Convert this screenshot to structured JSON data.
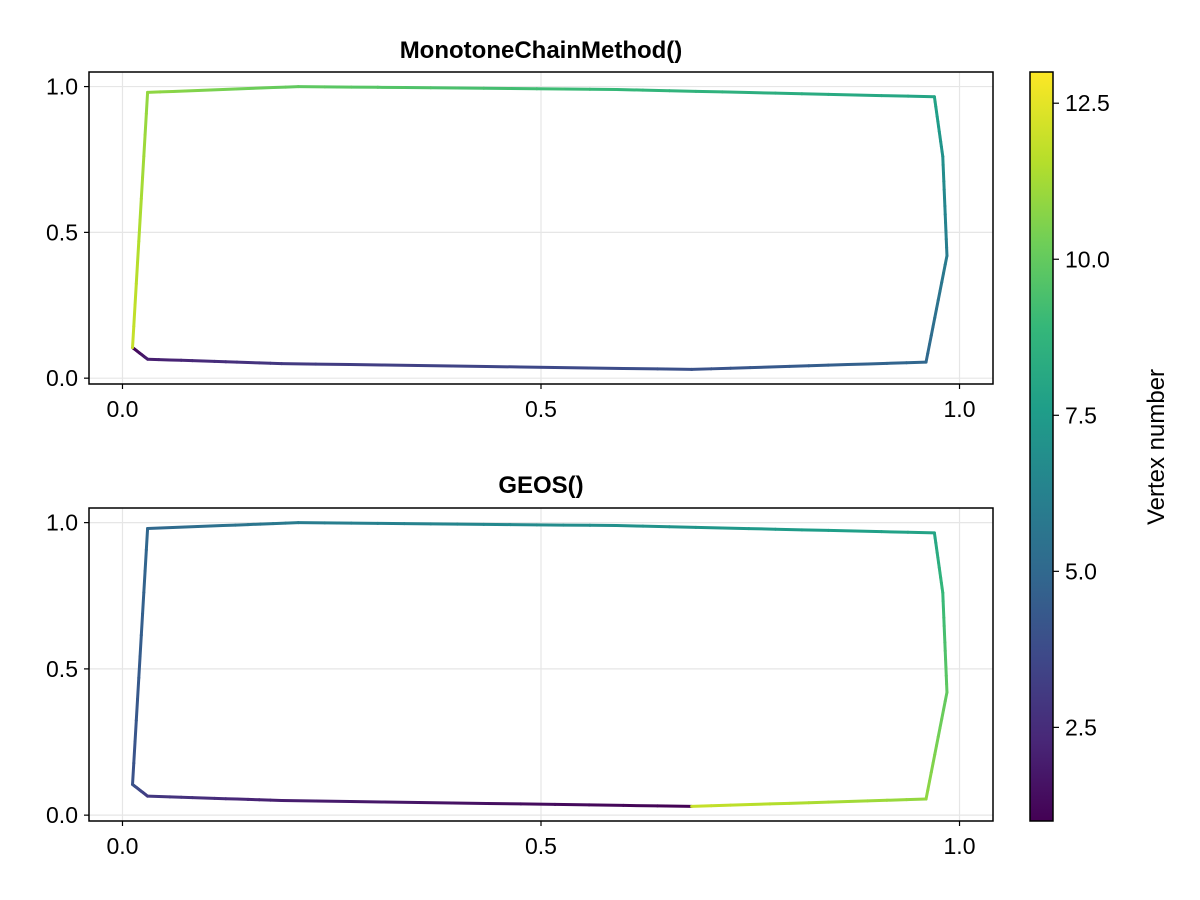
{
  "chart_data": [
    {
      "type": "line",
      "title": "MonotoneChainMethod()",
      "xlabel": "",
      "ylabel": "",
      "xlim": [
        -0.04,
        1.04
      ],
      "ylim": [
        -0.02,
        1.05
      ],
      "xticks": [
        "0.0",
        "0.5",
        "1.0"
      ],
      "yticks": [
        "0.0",
        "0.5",
        "1.0"
      ],
      "grid": true,
      "x": [
        0.012,
        0.03,
        0.19,
        0.68,
        0.96,
        0.985,
        0.98,
        0.97,
        0.59,
        0.21,
        0.03,
        0.012
      ],
      "y": [
        0.105,
        0.065,
        0.05,
        0.03,
        0.055,
        0.42,
        0.76,
        0.965,
        0.99,
        1.0,
        0.98,
        0.105
      ],
      "vertex_color": [
        1,
        2,
        3,
        4,
        5,
        6,
        7,
        8,
        9,
        10,
        11,
        12
      ]
    },
    {
      "type": "line",
      "title": "GEOS()",
      "xlabel": "",
      "ylabel": "",
      "xlim": [
        -0.04,
        1.04
      ],
      "ylim": [
        -0.02,
        1.05
      ],
      "xticks": [
        "0.0",
        "0.5",
        "1.0"
      ],
      "yticks": [
        "0.0",
        "0.5",
        "1.0"
      ],
      "grid": true,
      "x": [
        0.68,
        0.19,
        0.03,
        0.012,
        0.03,
        0.21,
        0.59,
        0.97,
        0.98,
        0.985,
        0.96,
        0.68
      ],
      "y": [
        0.03,
        0.05,
        0.065,
        0.105,
        0.98,
        1.0,
        0.99,
        0.965,
        0.76,
        0.42,
        0.055,
        0.03
      ],
      "vertex_color": [
        1,
        2,
        3,
        4,
        5,
        6,
        7,
        8,
        9,
        10,
        11,
        12
      ]
    }
  ],
  "colorbar": {
    "label": "Vertex number",
    "range": [
      1,
      13
    ],
    "ticks": [
      2.5,
      5.0,
      7.5,
      10.0,
      12.5
    ],
    "tick_labels": [
      "2.5",
      "5.0",
      "7.5",
      "10.0",
      "12.5"
    ],
    "colormap": [
      "#440154",
      "#482878",
      "#3e4989",
      "#31688e",
      "#26828e",
      "#1f9e89",
      "#35b779",
      "#6ece58",
      "#b5de2b",
      "#fde725"
    ]
  }
}
